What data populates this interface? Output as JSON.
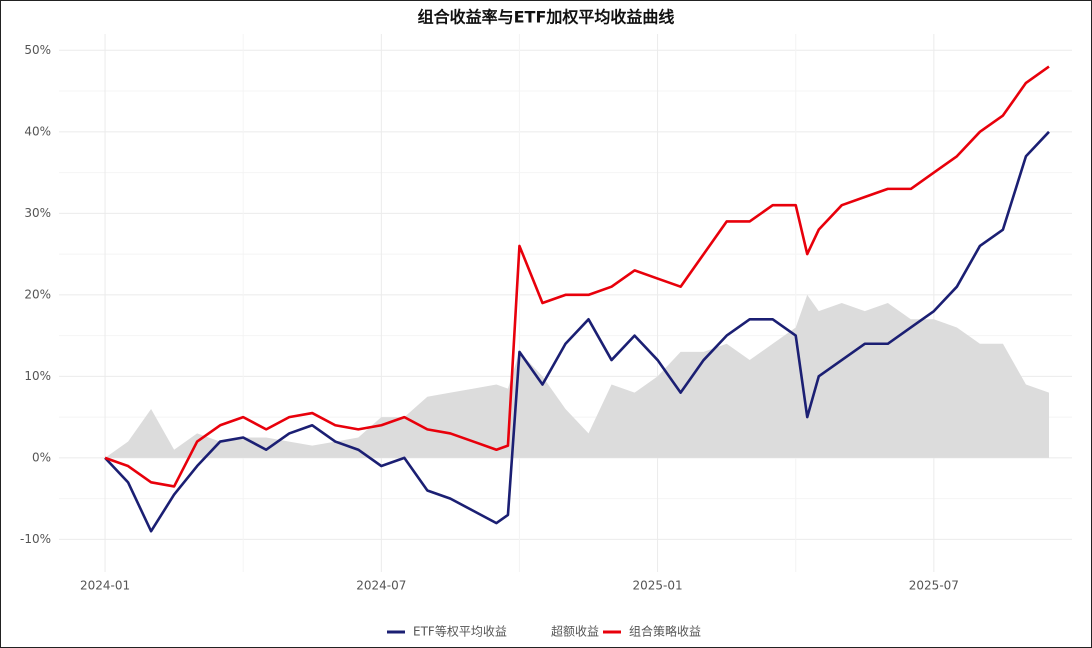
{
  "chart_data": {
    "type": "line",
    "title": "组合收益率与ETF加权平均收益曲线",
    "x": [
      0,
      0.5,
      1,
      1.5,
      2,
      2.5,
      3,
      3.5,
      4,
      4.5,
      5,
      5.5,
      6,
      6.5,
      7,
      7.5,
      8,
      8.5,
      8.75,
      9,
      9.5,
      10,
      10.5,
      11,
      11.5,
      12,
      12.5,
      13,
      13.5,
      14,
      14.5,
      15,
      15.25,
      15.5,
      16,
      16.5,
      17,
      17.5,
      18,
      18.5,
      19,
      19.5,
      20,
      20.5
    ],
    "series": [
      {
        "name": "ETF等权平均收益",
        "color": "#1b1f73",
        "style": "line",
        "values": [
          0,
          -3,
          -9,
          -4.5,
          -1,
          2,
          2.5,
          1,
          3,
          4,
          2,
          1,
          -1,
          0,
          -4,
          -5,
          -6.5,
          -8,
          -7,
          13,
          9,
          14,
          17,
          12,
          15,
          12,
          8,
          12,
          15,
          17,
          17,
          15,
          5,
          10,
          12,
          14,
          14,
          16,
          18,
          21,
          26,
          28,
          37,
          40
        ]
      },
      {
        "name": "超额收益",
        "color": "#dcdcdc",
        "style": "area",
        "values": [
          0,
          2,
          6,
          1,
          3,
          2,
          2.5,
          2.5,
          2,
          1.5,
          2,
          2.5,
          5,
          5,
          7.5,
          8,
          8.5,
          9,
          8.5,
          13,
          10,
          6,
          3,
          9,
          8,
          10,
          13,
          13,
          14,
          12,
          14,
          16,
          20,
          18,
          19,
          18,
          19,
          17,
          17,
          16,
          14,
          14,
          9,
          8
        ]
      },
      {
        "name": "组合策略收益",
        "color": "#e8000b",
        "style": "line",
        "values": [
          0,
          -1,
          -3,
          -3.5,
          2,
          4,
          5,
          3.5,
          5,
          5.5,
          4,
          3.5,
          4,
          5,
          3.5,
          3,
          2,
          1,
          1.5,
          26,
          19,
          20,
          20,
          21,
          23,
          22,
          21,
          25,
          29,
          29,
          31,
          31,
          25,
          28,
          31,
          32,
          33,
          33,
          35,
          37,
          40,
          42,
          46,
          48
        ]
      }
    ],
    "xlim": [
      -1,
      21
    ],
    "xticks": [
      {
        "value": 0,
        "label": "2024-01"
      },
      {
        "value": 6,
        "label": "2024-07"
      },
      {
        "value": 12,
        "label": "2025-01"
      },
      {
        "value": 18,
        "label": "2025-07"
      }
    ],
    "ylim": [
      -14,
      52
    ],
    "yticks": [
      {
        "value": -10,
        "label": "-10%"
      },
      {
        "value": 0,
        "label": "0%"
      },
      {
        "value": 10,
        "label": "10%"
      },
      {
        "value": 20,
        "label": "20%"
      },
      {
        "value": 30,
        "label": "30%"
      },
      {
        "value": 40,
        "label": "40%"
      },
      {
        "value": 50,
        "label": "50%"
      }
    ],
    "grid": true,
    "legend": "bottom"
  }
}
